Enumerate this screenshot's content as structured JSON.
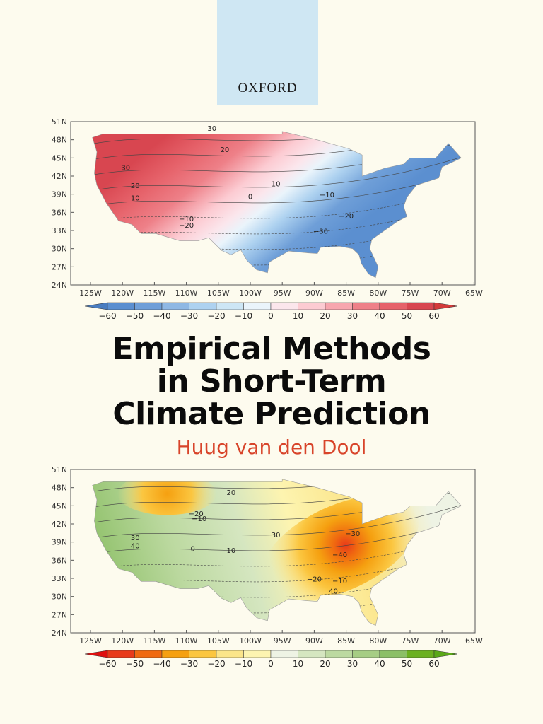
{
  "publisher": "OXFORD",
  "title_lines": [
    "Empirical Methods",
    "in Short-Term",
    "Climate Prediction"
  ],
  "author": "Huug van den Dool",
  "maps": [
    {
      "lat_labels": [
        "51N",
        "48N",
        "45N",
        "42N",
        "39N",
        "36N",
        "33N",
        "30N",
        "27N",
        "24N"
      ],
      "lon_labels": [
        "125W",
        "120W",
        "115W",
        "110W",
        "105W",
        "100W",
        "95W",
        "90W",
        "85W",
        "80W",
        "75W",
        "70W",
        "65W"
      ],
      "colorbar_labels": [
        "−60",
        "−50",
        "−40",
        "−30",
        "−20",
        "−10",
        "0",
        "10",
        "20",
        "30",
        "40",
        "50",
        "60"
      ],
      "colorbar_colors": [
        "#4a7dc0",
        "#5b8fd0",
        "#6f9fd8",
        "#8fb8e4",
        "#aed2f0",
        "#cde6f5",
        "#eaf4fb",
        "#fbe6ec",
        "#fccbd2",
        "#f7a6ae",
        "#ee8088",
        "#e6626a",
        "#d84650",
        "#d33a3a"
      ],
      "contour_labels": [
        "30",
        "30",
        "20",
        "20",
        "10",
        "10",
        "0",
        "−10",
        "−10",
        "−20",
        "−20",
        "−30"
      ]
    },
    {
      "lat_labels": [
        "51N",
        "48N",
        "45N",
        "42N",
        "39N",
        "36N",
        "33N",
        "30N",
        "27N",
        "24N"
      ],
      "lon_labels": [
        "125W",
        "120W",
        "115W",
        "110W",
        "105W",
        "100W",
        "95W",
        "90W",
        "85W",
        "80W",
        "75W",
        "70W",
        "65W"
      ],
      "colorbar_labels": [
        "−60",
        "−50",
        "−40",
        "−30",
        "−20",
        "−10",
        "0",
        "10",
        "20",
        "30",
        "40",
        "50",
        "60"
      ],
      "colorbar_colors": [
        "#e01010",
        "#e83a1a",
        "#f06a10",
        "#f5a010",
        "#fbc640",
        "#fbe58a",
        "#fdf4b0",
        "#eef3e4",
        "#d5e6c0",
        "#bcd9a0",
        "#a6cd84",
        "#8cbf66",
        "#6cb020",
        "#5aa818"
      ],
      "contour_labels": [
        "20",
        "−20",
        "−10",
        "30",
        "30",
        "40",
        "10",
        "0",
        "−30",
        "−40",
        "−20",
        "−10",
        "40"
      ]
    }
  ]
}
